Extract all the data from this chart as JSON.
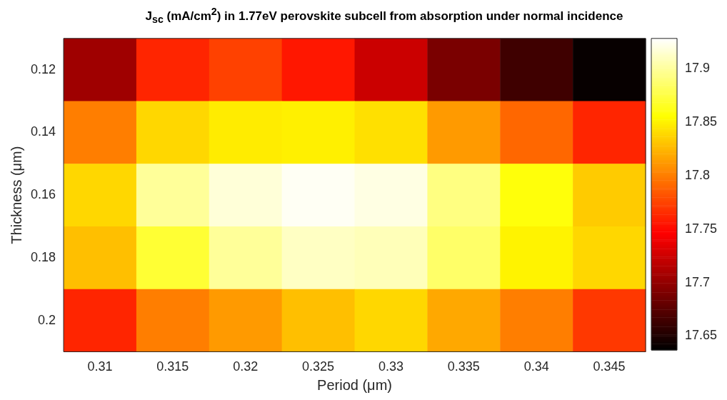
{
  "chart_data": {
    "type": "heatmap",
    "title": "J$_{sc}$ (mA/cm$^{2}$) in 1.77eV perovskite subcell from absorption under normal incidence",
    "xlabel": "Period (μm)",
    "ylabel": "Thickness (μm)",
    "categories": [
      "0.31",
      "0.315",
      "0.32",
      "0.325",
      "0.33",
      "0.335",
      "0.34",
      "0.345"
    ],
    "y_categories": [
      "0.12",
      "0.14",
      "0.16",
      "0.18",
      "0.2"
    ],
    "cells": [
      [
        17.705,
        17.762,
        17.774,
        17.756,
        17.724,
        17.689,
        17.664,
        17.64
      ],
      [
        17.8,
        17.838,
        17.847,
        17.849,
        17.842,
        17.812,
        17.79,
        17.762
      ],
      [
        17.838,
        17.899,
        17.917,
        17.925,
        17.92,
        17.892,
        17.858,
        17.833
      ],
      [
        17.828,
        17.87,
        17.899,
        17.911,
        17.908,
        17.885,
        17.85,
        17.838
      ],
      [
        17.762,
        17.8,
        17.812,
        17.828,
        17.838,
        17.818,
        17.8,
        17.77
      ]
    ],
    "clim": [
      17.637,
      17.928
    ],
    "cticks": [
      17.65,
      17.7,
      17.75,
      17.8,
      17.85,
      17.9
    ]
  }
}
